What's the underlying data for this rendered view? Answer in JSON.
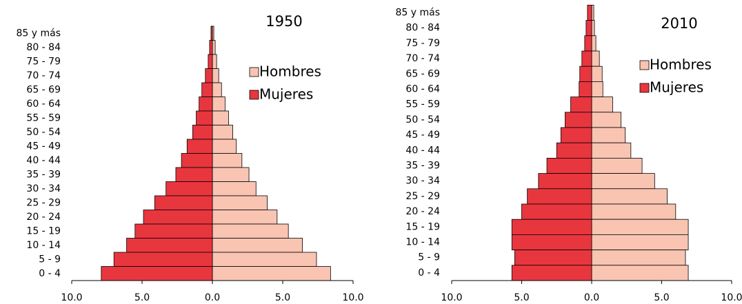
{
  "chart_data": [
    {
      "type": "pyramid",
      "title": "1950",
      "categories": [
        "85 y más",
        "80 - 84",
        "75 - 79",
        "70 - 74",
        "65 - 69",
        "60 - 64",
        "55 - 59",
        "50 - 54",
        "45 - 49",
        "40 - 44",
        "35 - 39",
        "30 - 34",
        "25 - 29",
        "20 - 24",
        "15 - 19",
        "10 - 14",
        "5 - 9",
        "0 - 4"
      ],
      "series": [
        {
          "name": "Hombres",
          "color": "#f9c4b2",
          "values": [
            0.1,
            0.2,
            0.3,
            0.45,
            0.65,
            0.9,
            1.15,
            1.45,
            1.7,
            2.1,
            2.6,
            3.1,
            3.9,
            4.6,
            5.4,
            6.4,
            7.4,
            8.4
          ]
        },
        {
          "name": "Mujeres",
          "color": "#e8363f",
          "values": [
            -0.1,
            -0.2,
            -0.3,
            -0.5,
            -0.75,
            -0.95,
            -1.15,
            -1.4,
            -1.8,
            -2.2,
            -2.6,
            -3.3,
            -4.1,
            -4.9,
            -5.5,
            -6.1,
            -7.0,
            -7.9
          ]
        }
      ],
      "xlim": [
        -10,
        10
      ],
      "xticks": [
        {
          "value": -10,
          "label": "10.0"
        },
        {
          "value": -5,
          "label": "5.0"
        },
        {
          "value": 0,
          "label": "0.0"
        },
        {
          "value": 5,
          "label": "5.0"
        },
        {
          "value": 10,
          "label": "10.0"
        }
      ]
    },
    {
      "type": "pyramid",
      "title": "2010",
      "categories": [
        "85 y más",
        "80 - 84",
        "75 - 79",
        "70 - 74",
        "65 - 69",
        "60 - 64",
        "55 - 59",
        "50 - 54",
        "45 - 49",
        "40 - 44",
        "35 - 39",
        "30 - 34",
        "25 - 29",
        "20 - 24",
        "15 - 19",
        "10 - 14",
        "5 - 9",
        "0 - 4"
      ],
      "series": [
        {
          "name": "Hombres",
          "color": "#f9c4b2",
          "values": [
            0.15,
            0.2,
            0.3,
            0.55,
            0.75,
            0.8,
            1.5,
            2.1,
            2.4,
            2.8,
            3.6,
            4.5,
            5.4,
            6.0,
            6.9,
            6.9,
            6.7,
            6.9
          ]
        },
        {
          "name": "Mujeres",
          "color": "#e8363f",
          "values": [
            -0.3,
            -0.4,
            -0.5,
            -0.7,
            -0.85,
            -0.9,
            -1.5,
            -1.9,
            -2.2,
            -2.5,
            -3.2,
            -3.8,
            -4.6,
            -5.0,
            -5.7,
            -5.7,
            -5.5,
            -5.7
          ]
        }
      ],
      "xlim": [
        -10,
        10
      ],
      "xticks": [
        {
          "value": -10,
          "label": "10.0"
        },
        {
          "value": -5,
          "label": "5.0"
        },
        {
          "value": 0,
          "label": "0.0"
        },
        {
          "value": 5,
          "label": "5.0"
        },
        {
          "value": 10,
          "label": "10.0"
        }
      ]
    }
  ]
}
